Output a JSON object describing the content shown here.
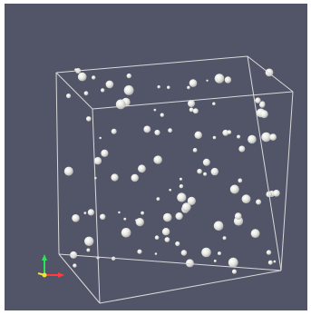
{
  "scene": {
    "background_color": "#525468",
    "outline_color": "#d9d9d9",
    "sphere_color": "#e6e6e0",
    "axes": {
      "x_color": "#ff3b3b",
      "y_color": "#f2e13a",
      "z_color": "#2fe05a"
    }
  }
}
